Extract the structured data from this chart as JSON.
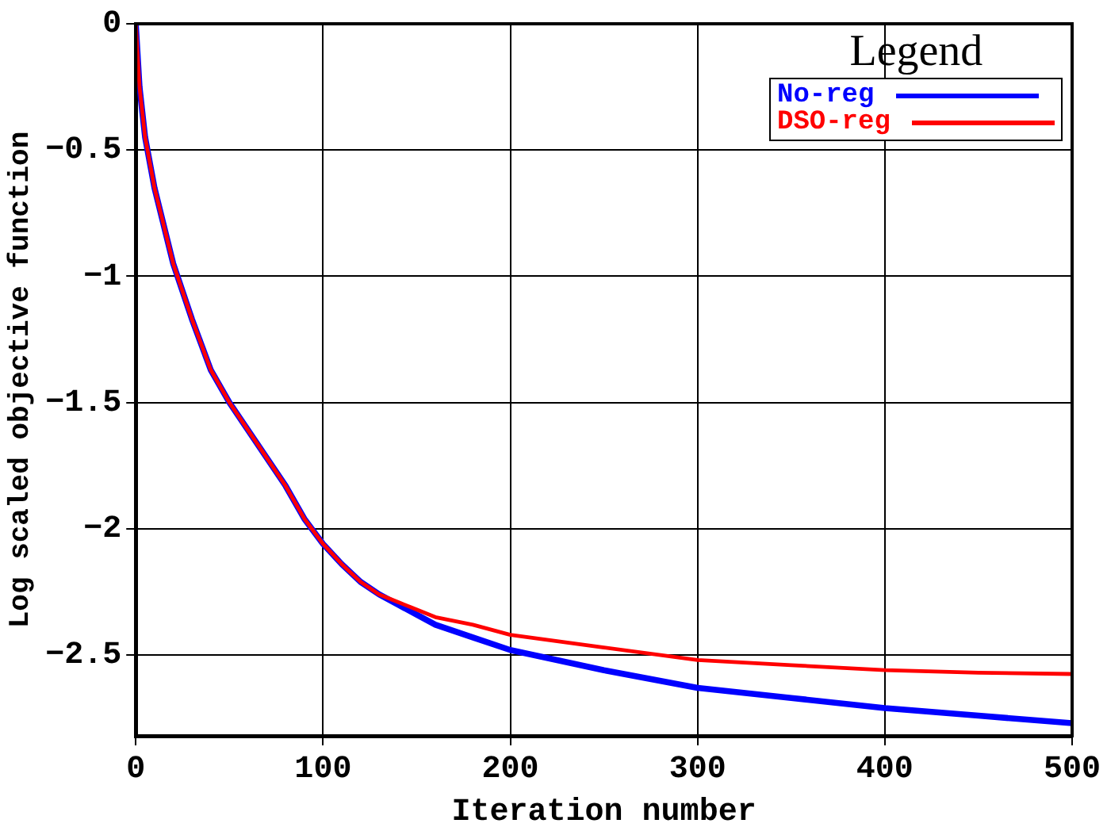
{
  "chart_data": {
    "type": "line",
    "xlabel": "Iteration number",
    "ylabel": "Log scaled objective function",
    "legend_title": "Legend",
    "legend": "top right",
    "grid": true,
    "marker": "none",
    "line_style": "solid",
    "xlim": [
      0,
      500
    ],
    "xticks": [
      0,
      100,
      200,
      300,
      400,
      500
    ],
    "ylim": [
      -2.82,
      0
    ],
    "yticks": [
      0,
      -0.5,
      -1,
      -1.5,
      -2,
      -2.5
    ],
    "x": [
      0,
      2,
      5,
      10,
      20,
      30,
      40,
      50,
      60,
      70,
      80,
      90,
      100,
      110,
      120,
      130,
      140,
      150,
      160,
      180,
      200,
      250,
      300,
      350,
      400,
      450,
      500
    ],
    "series": [
      {
        "name": "No-reg",
        "color": "#0000ff",
        "values": [
          0,
          -0.25,
          -0.45,
          -0.65,
          -0.95,
          -1.17,
          -1.37,
          -1.5,
          -1.61,
          -1.72,
          -1.83,
          -1.96,
          -2.06,
          -2.14,
          -2.21,
          -2.26,
          -2.3,
          -2.34,
          -2.38,
          -2.43,
          -2.48,
          -2.56,
          -2.63,
          -2.67,
          -2.71,
          -2.74,
          -2.77
        ]
      },
      {
        "name": "DSO-reg",
        "color": "#ff0000",
        "values": [
          0,
          -0.25,
          -0.45,
          -0.65,
          -0.95,
          -1.17,
          -1.37,
          -1.5,
          -1.61,
          -1.72,
          -1.83,
          -1.96,
          -2.06,
          -2.14,
          -2.21,
          -2.26,
          -2.29,
          -2.32,
          -2.35,
          -2.38,
          -2.42,
          -2.47,
          -2.52,
          -2.54,
          -2.56,
          -2.57,
          -2.575
        ]
      }
    ]
  }
}
